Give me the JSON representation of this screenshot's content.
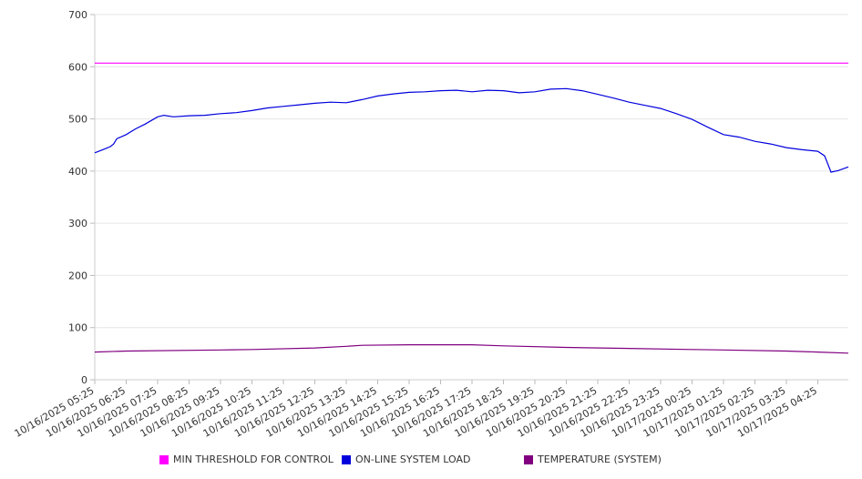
{
  "chart_data": {
    "type": "line",
    "title": "",
    "xlabel": "",
    "ylabel": "",
    "ylim": [
      0,
      700
    ],
    "yticks": [
      "0",
      "100",
      "200",
      "300",
      "400",
      "500",
      "600",
      "700"
    ],
    "grid": true,
    "x_unit": "hours since 10/16/2025 05:25",
    "xlim": [
      0,
      23.97
    ],
    "xtick_labels": [
      "10/16/2025 05:25",
      "10/16/2025 06:25",
      "10/16/2025 07:25",
      "10/16/2025 08:25",
      "10/16/2025 09:25",
      "10/16/2025 10:25",
      "10/16/2025 11:25",
      "10/16/2025 12:25",
      "10/16/2025 13:25",
      "10/16/2025 14:25",
      "10/16/2025 15:25",
      "10/16/2025 16:25",
      "10/16/2025 17:25",
      "10/16/2025 18:25",
      "10/16/2025 19:25",
      "10/16/2025 20:25",
      "10/16/2025 21:25",
      "10/16/2025 22:25",
      "10/16/2025 23:25",
      "10/17/2025 00:25",
      "10/17/2025 01:25",
      "10/17/2025 02:25",
      "10/17/2025 03:25",
      "10/17/2025 04:25"
    ],
    "legend_position": "bottom",
    "series": [
      {
        "name": "MIN THRESHOLD FOR CONTROL",
        "color": "#ff00ff",
        "points": [
          [
            0,
            607
          ],
          [
            23.97,
            607
          ]
        ]
      },
      {
        "name": "ON-LINE SYSTEM LOAD",
        "color": "#0000dd",
        "points": [
          [
            0,
            435
          ],
          [
            0.3,
            442
          ],
          [
            0.5,
            447
          ],
          [
            0.6,
            452
          ],
          [
            0.7,
            462
          ],
          [
            1.0,
            470
          ],
          [
            1.3,
            481
          ],
          [
            1.6,
            490
          ],
          [
            1.8,
            497
          ],
          [
            2.0,
            504
          ],
          [
            2.2,
            507
          ],
          [
            2.5,
            504
          ],
          [
            3.0,
            506
          ],
          [
            3.5,
            507
          ],
          [
            4.0,
            510
          ],
          [
            4.5,
            512
          ],
          [
            5.0,
            516
          ],
          [
            5.5,
            521
          ],
          [
            6.0,
            524
          ],
          [
            6.5,
            527
          ],
          [
            7.0,
            530
          ],
          [
            7.5,
            532
          ],
          [
            8.0,
            531
          ],
          [
            8.5,
            537
          ],
          [
            9.0,
            544
          ],
          [
            9.5,
            548
          ],
          [
            10.0,
            551
          ],
          [
            10.5,
            552
          ],
          [
            11.0,
            554
          ],
          [
            11.5,
            555
          ],
          [
            12.0,
            552
          ],
          [
            12.5,
            555
          ],
          [
            13.0,
            554
          ],
          [
            13.5,
            550
          ],
          [
            14.0,
            552
          ],
          [
            14.5,
            557
          ],
          [
            15.0,
            558
          ],
          [
            15.5,
            554
          ],
          [
            16.0,
            547
          ],
          [
            16.5,
            540
          ],
          [
            17.0,
            532
          ],
          [
            17.5,
            526
          ],
          [
            18.0,
            520
          ],
          [
            18.5,
            510
          ],
          [
            19.0,
            499
          ],
          [
            19.5,
            484
          ],
          [
            20.0,
            470
          ],
          [
            20.5,
            465
          ],
          [
            21.0,
            457
          ],
          [
            21.5,
            452
          ],
          [
            22.0,
            445
          ],
          [
            22.5,
            441
          ],
          [
            23.0,
            438
          ],
          [
            23.5,
            434
          ],
          [
            24.0,
            431
          ],
          [
            24.5,
            430
          ],
          [
            25.0,
            429
          ]
        ]
      },
      {
        "name": "TEMPERATURE (SYSTEM)",
        "color": "#800080",
        "points": [
          [
            0,
            53
          ],
          [
            1,
            55
          ],
          [
            4,
            57
          ],
          [
            5,
            58
          ],
          [
            7,
            61
          ],
          [
            8,
            64
          ],
          [
            8.5,
            66
          ],
          [
            10,
            67
          ],
          [
            12,
            67
          ],
          [
            13,
            65
          ],
          [
            15,
            62
          ],
          [
            17,
            60
          ],
          [
            19,
            58
          ],
          [
            20,
            57
          ],
          [
            22,
            55
          ],
          [
            23,
            53
          ],
          [
            23.97,
            51
          ]
        ]
      }
    ]
  }
}
